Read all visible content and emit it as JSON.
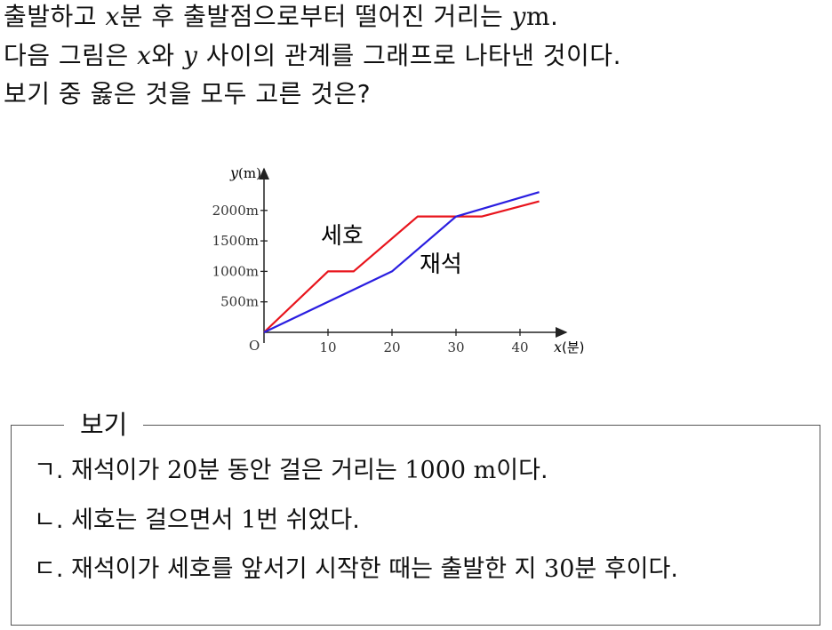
{
  "problem": {
    "line1": {
      "a": "출발하고 ",
      "x": "x",
      "b": "분 후 출발점으로부터 떨어진 거리는 ",
      "y": "y",
      "unit": "m",
      "end": "."
    },
    "line2": {
      "a": "다음 그림은 ",
      "x": "x",
      "b": "와 ",
      "y": "y",
      "c": " 사이의 관계를 그래프로 나타낸 것이다."
    },
    "line3": "보기 중 옳은 것을 모두 고른 것은?"
  },
  "graph": {
    "ylabel_var": "y",
    "ylabel_unit": "(m)",
    "xlabel_var": "x",
    "xlabel_unit": "(분)",
    "origin": "O",
    "label_seho": "세호",
    "label_jaeseok": "재석"
  },
  "chart_data": {
    "type": "line",
    "xlabel": "x(분)",
    "ylabel": "y(m)",
    "xlim": [
      0,
      45
    ],
    "ylim": [
      0,
      2400
    ],
    "x_ticks": [
      10,
      20,
      30,
      40
    ],
    "x_tick_labels": [
      "10",
      "20",
      "30",
      "40"
    ],
    "y_ticks": [
      500,
      1000,
      1500,
      2000
    ],
    "y_tick_labels": [
      "500m",
      "1000m",
      "1500m",
      "2000m"
    ],
    "grid": false,
    "series": [
      {
        "name": "세호",
        "color": "#e8141c",
        "x": [
          0,
          10,
          14,
          24,
          30,
          34,
          43
        ],
        "y": [
          0,
          1000,
          1000,
          1900,
          1900,
          1900,
          2150
        ]
      },
      {
        "name": "재석",
        "color": "#2a1ee0",
        "x": [
          0,
          20,
          30,
          43
        ],
        "y": [
          0,
          1000,
          1900,
          2300
        ]
      }
    ]
  },
  "bogi": {
    "title": "보기",
    "items": [
      {
        "label": "ㄱ. 재석이가 ",
        "num": "20",
        "text": "분 동안 걸은 거리는 ",
        "num2": "1000 m",
        "text2": "이다."
      },
      {
        "label": "ㄴ. 세호는 걸으면서 ",
        "num": "1",
        "text": "번 쉬었다.",
        "num2": "",
        "text2": ""
      },
      {
        "label": "ㄷ. 재석이가 세호를 앞서기 시작한 때는 출발한 지 ",
        "num": "30",
        "text": "분 후이다.",
        "num2": "",
        "text2": ""
      }
    ]
  }
}
